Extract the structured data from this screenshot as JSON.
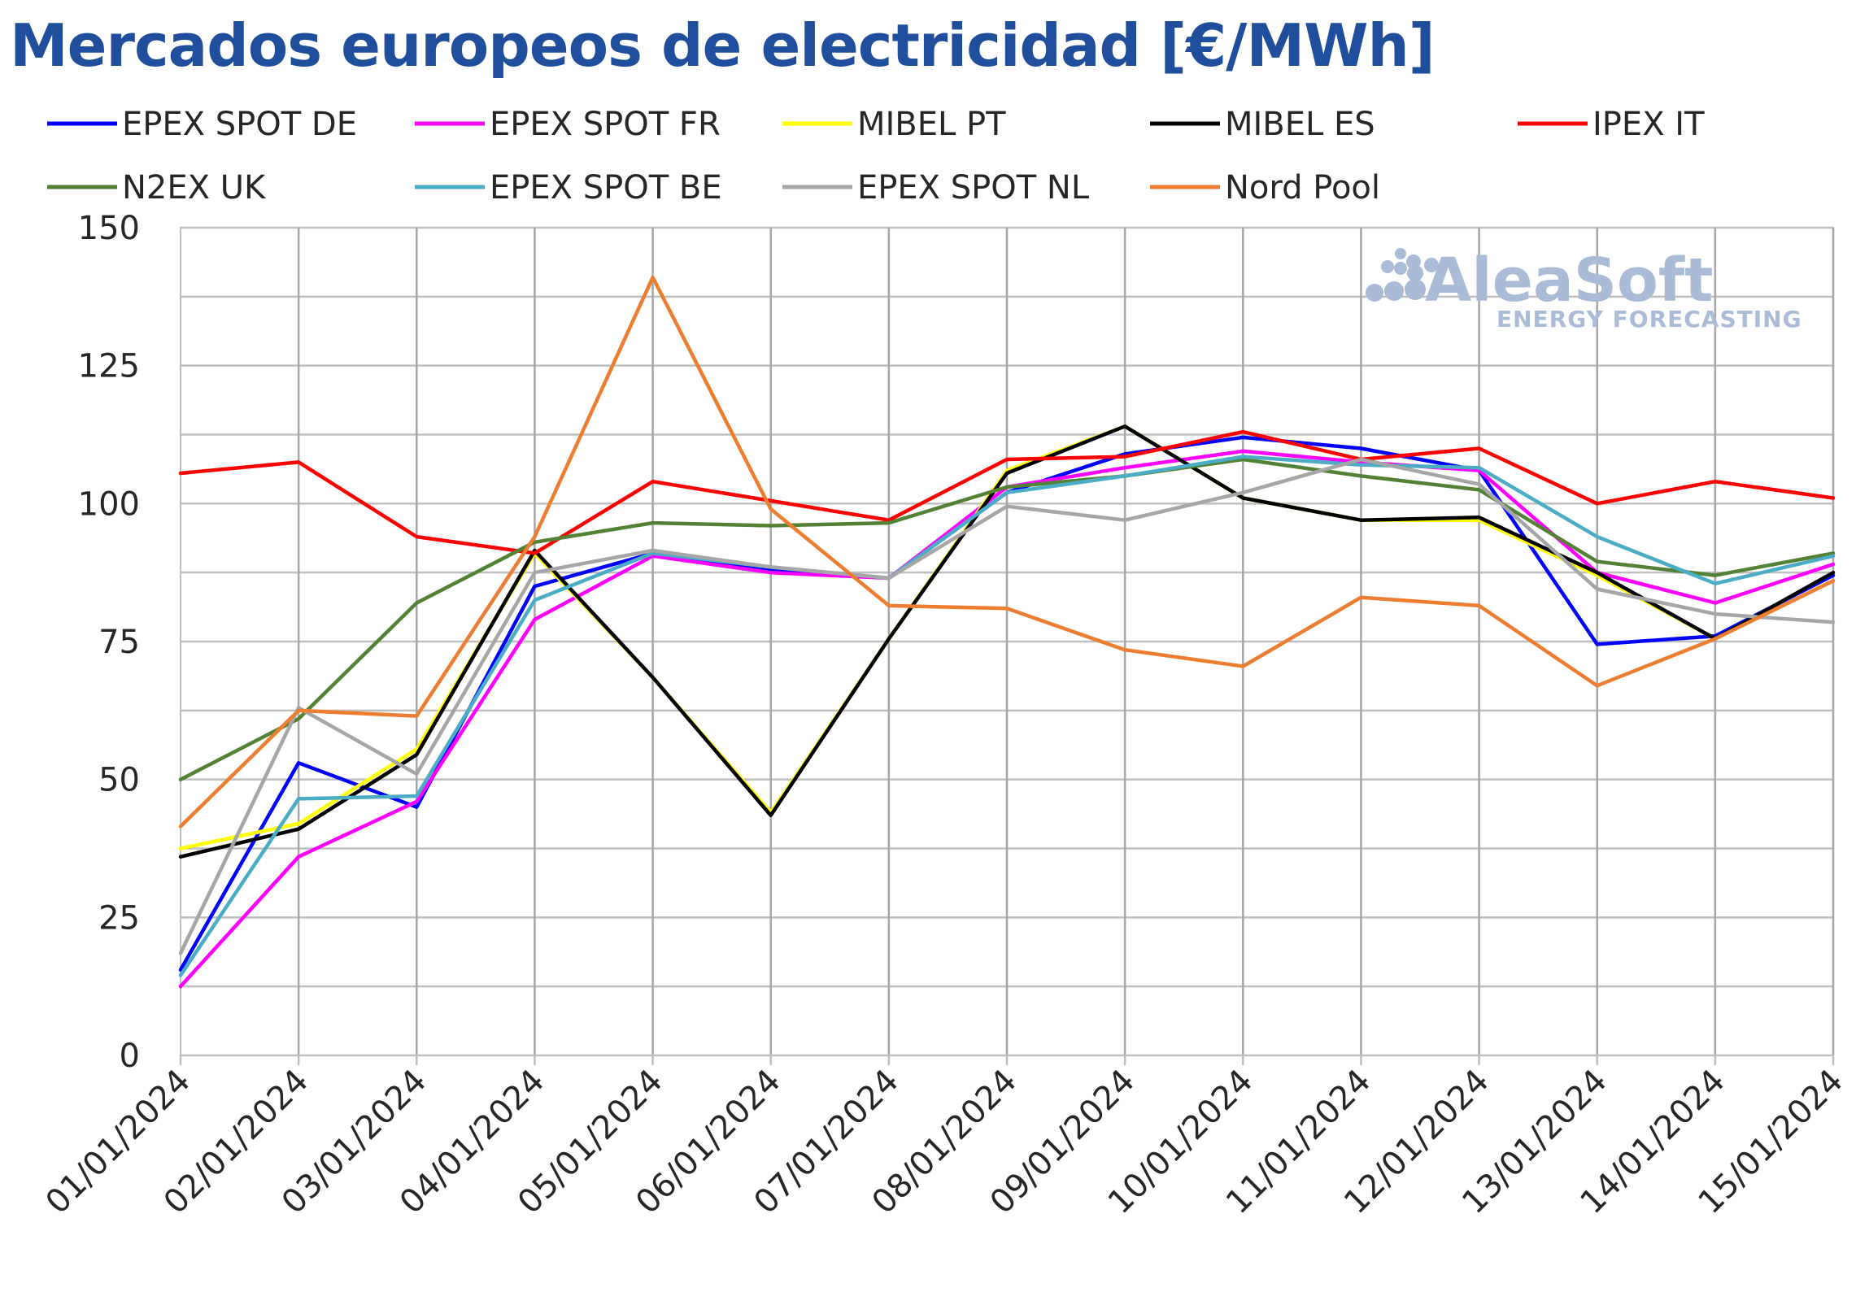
{
  "chart_data": {
    "type": "line",
    "title": "Mercados europeos de electricidad [€/MWh]",
    "xlabel": "",
    "ylabel": "",
    "ylim": [
      0,
      150
    ],
    "yticks": [
      0,
      25,
      50,
      75,
      100,
      125,
      150
    ],
    "grid": true,
    "legend_position": "top",
    "categories": [
      "01/01/2024",
      "02/01/2024",
      "03/01/2024",
      "04/01/2024",
      "05/01/2024",
      "06/01/2024",
      "07/01/2024",
      "08/01/2024",
      "09/01/2024",
      "10/01/2024",
      "11/01/2024",
      "12/01/2024",
      "13/01/2024",
      "14/01/2024",
      "15/01/2024"
    ],
    "series": [
      {
        "name": "EPEX SPOT DE",
        "color": "#0000ff",
        "values": [
          15.5,
          53,
          45,
          85,
          91,
          88,
          86.5,
          102,
          109,
          112,
          110,
          106,
          74.5,
          76,
          87
        ]
      },
      {
        "name": "EPEX SPOT FR",
        "color": "#ff00ff",
        "values": [
          12.5,
          36,
          46,
          79,
          90.5,
          87.5,
          86.5,
          103,
          106.5,
          109.5,
          107.5,
          106,
          87.5,
          82,
          89
        ]
      },
      {
        "name": "MIBEL PT",
        "color": "#ffff00",
        "values": [
          37.5,
          42,
          55.5,
          91,
          68.5,
          44,
          75.5,
          106,
          114,
          101,
          97,
          97,
          87,
          75.5,
          86
        ]
      },
      {
        "name": "MIBEL ES",
        "color": "#000000",
        "values": [
          36,
          41,
          54.5,
          91.5,
          68.5,
          43.5,
          75.5,
          105.5,
          114,
          101,
          97,
          97.5,
          87.5,
          75.5,
          87.5
        ]
      },
      {
        "name": "IPEX IT",
        "color": "#ff0000",
        "values": [
          105.5,
          107.5,
          94,
          91,
          104,
          100.5,
          97,
          108,
          108.5,
          113,
          108,
          110,
          100,
          104,
          101
        ]
      },
      {
        "name": "N2EX UK",
        "color": "#548235",
        "values": [
          50,
          61,
          82,
          93,
          96.5,
          96,
          96.5,
          103,
          105,
          108,
          105,
          102.5,
          89.5,
          87,
          91
        ]
      },
      {
        "name": "EPEX SPOT BE",
        "color": "#4bacc6",
        "values": [
          14.5,
          46.5,
          47,
          82.5,
          91,
          88.5,
          86.5,
          102,
          105,
          108.5,
          107,
          106.5,
          94,
          85.5,
          90.5
        ]
      },
      {
        "name": "EPEX SPOT NL",
        "color": "#a6a6a6",
        "values": [
          18.5,
          63,
          51,
          87.5,
          91.5,
          88.5,
          86.5,
          99.5,
          97,
          102,
          108,
          103.5,
          84.5,
          80,
          78.5
        ]
      },
      {
        "name": "Nord Pool",
        "color": "#ed7d31",
        "values": [
          41.5,
          62.5,
          61.5,
          94,
          141,
          99,
          81.5,
          81,
          73.5,
          70.5,
          83,
          81.5,
          67,
          75.5,
          86
        ]
      }
    ]
  },
  "logo": {
    "name": "AleaSoft",
    "tagline": "ENERGY FORECASTING"
  }
}
